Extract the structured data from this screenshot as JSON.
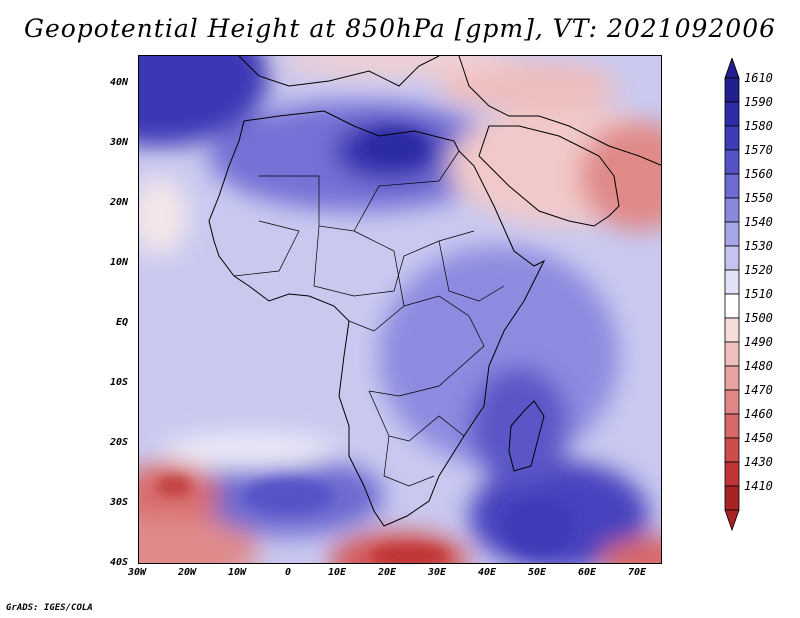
{
  "title": "Geopotential Height at 850hPa [gpm], VT: 2021092006",
  "credit": "GrADS: IGES/COLA",
  "lat_ticks": [
    "40N",
    "30N",
    "20N",
    "10N",
    "EQ",
    "10S",
    "20S",
    "30S",
    "40S"
  ],
  "lon_ticks": [
    "30W",
    "20W",
    "10W",
    "0",
    "10E",
    "20E",
    "30E",
    "40E",
    "50E",
    "60E",
    "70E"
  ],
  "colorbar": {
    "labels": [
      "1610",
      "1590",
      "1580",
      "1570",
      "1560",
      "1550",
      "1540",
      "1530",
      "1520",
      "1510",
      "1500",
      "1490",
      "1480",
      "1470",
      "1460",
      "1450",
      "1430",
      "1410"
    ],
    "colors": [
      "#221f8f",
      "#2e2ba6",
      "#3f3cb8",
      "#5552c7",
      "#6e6bd3",
      "#8a88dd",
      "#a7a6e6",
      "#c4c4ef",
      "#e1e1f7",
      "#ffffff",
      "#f7dcdc",
      "#f0c0c0",
      "#e8a3a3",
      "#e08686",
      "#d86868",
      "#cf4c4c",
      "#c03636",
      "#a82424"
    ]
  },
  "icons": {
    "colorbar_top": "triangle-up",
    "colorbar_bottom": "triangle-down"
  }
}
